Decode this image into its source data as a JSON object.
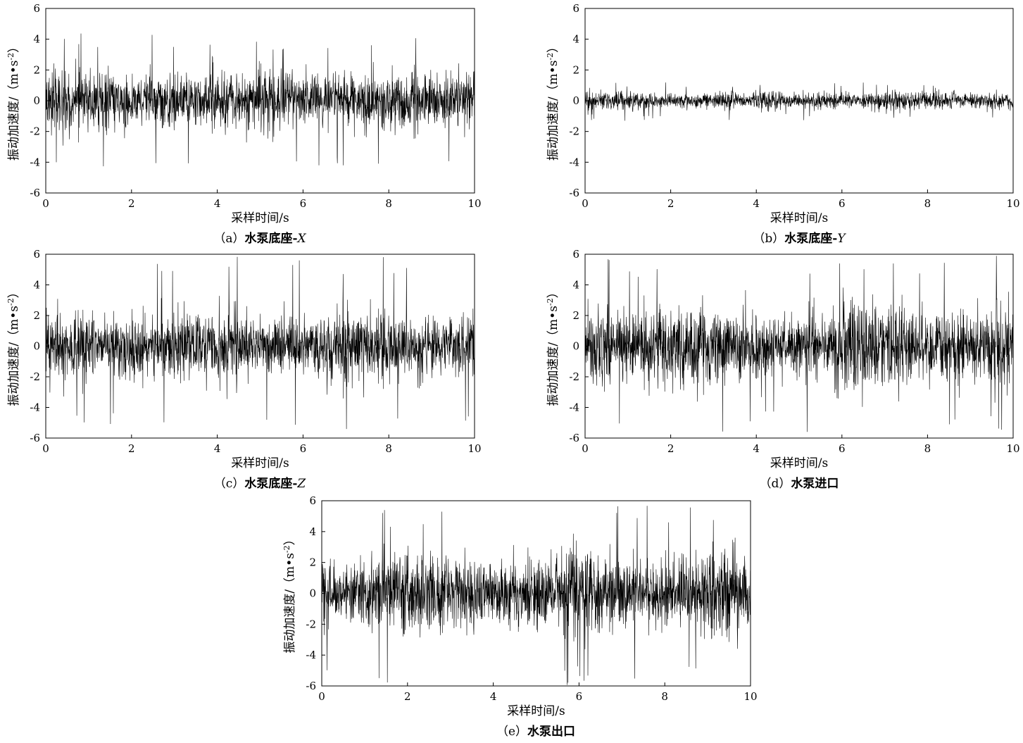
{
  "chart_data": [
    {
      "type": "line",
      "caption_prefix": "（a）",
      "caption_main": "水泵底座-",
      "caption_italic": "X",
      "xlabel": "采样时间/s",
      "ylabel_main": "振动加速度/（m•s",
      "ylabel_sup": "-2",
      "ylabel_end": "）",
      "xlim": [
        0,
        10
      ],
      "ylim": [
        -6,
        6
      ],
      "xticks": [
        "0",
        "2",
        "4",
        "6",
        "8",
        "10"
      ],
      "yticks": [
        "-6",
        "-4",
        "-2",
        "0",
        "2",
        "4",
        "6"
      ],
      "series": [
        {
          "values": {
            "t_range": [
              0,
              10
            ],
            "core_amplitude": 1.5,
            "typical_peak": 2.6,
            "max": 4.4,
            "min": -4.5
          }
        }
      ]
    },
    {
      "type": "line",
      "caption_prefix": "（b）",
      "caption_main": "水泵底座-",
      "caption_italic": "Y",
      "xlabel": "采样时间/s",
      "ylabel_main": "振动加速度/（m•s",
      "ylabel_sup": "-2",
      "ylabel_end": "）",
      "xlim": [
        0,
        10
      ],
      "ylim": [
        -6,
        6
      ],
      "xticks": [
        "0",
        "2",
        "4",
        "6",
        "8",
        "10"
      ],
      "yticks": [
        "-6",
        "-4",
        "-2",
        "0",
        "2",
        "4",
        "6"
      ],
      "series": [
        {
          "values": {
            "t_range": [
              0,
              10
            ],
            "core_amplitude": 0.45,
            "typical_peak": 0.8,
            "max": 1.2,
            "min": -1.3
          }
        }
      ]
    },
    {
      "type": "line",
      "caption_prefix": "（c）",
      "caption_main": "水泵底座-",
      "caption_italic": "Z",
      "xlabel": "采样时间/s",
      "ylabel_main": "振动加速度/（m•s",
      "ylabel_sup": "-2",
      "ylabel_end": "）",
      "xlim": [
        0,
        10
      ],
      "ylim": [
        -6,
        6
      ],
      "xticks": [
        "0",
        "2",
        "4",
        "6",
        "8",
        "10"
      ],
      "yticks": [
        "-6",
        "-4",
        "-2",
        "0",
        "2",
        "4",
        "6"
      ],
      "series": [
        {
          "values": {
            "t_range": [
              0,
              10
            ],
            "core_amplitude": 1.7,
            "typical_peak": 3.2,
            "max": 5.9,
            "min": -5.6
          }
        }
      ]
    },
    {
      "type": "line",
      "caption_prefix": "（d）",
      "caption_main": "水泵进口",
      "caption_italic": "",
      "xlabel": "采样时间/s",
      "ylabel_main": "振动加速度/（m•s",
      "ylabel_sup": "-2",
      "ylabel_end": "）",
      "xlim": [
        0,
        10
      ],
      "ylim": [
        -6,
        6
      ],
      "xticks": [
        "0",
        "2",
        "4",
        "6",
        "8",
        "10"
      ],
      "yticks": [
        "-6",
        "-4",
        "-2",
        "0",
        "2",
        "4",
        "6"
      ],
      "series": [
        {
          "values": {
            "t_range": [
              0,
              10
            ],
            "core_amplitude": 2.0,
            "typical_peak": 3.5,
            "max": 5.9,
            "min": -5.6
          }
        }
      ]
    },
    {
      "type": "line",
      "caption_prefix": "（e）",
      "caption_main": "水泵出口",
      "caption_italic": "",
      "xlabel": "采样时间/s",
      "ylabel_main": "振动加速度/（m•s",
      "ylabel_sup": "-2",
      "ylabel_end": "）",
      "xlim": [
        0,
        10
      ],
      "ylim": [
        -6,
        6
      ],
      "xticks": [
        "0",
        "2",
        "4",
        "6",
        "8",
        "10"
      ],
      "yticks": [
        "-6",
        "-4",
        "-2",
        "0",
        "2",
        "4",
        "6"
      ],
      "series": [
        {
          "values": {
            "t_range": [
              0,
              10
            ],
            "core_amplitude": 2.0,
            "typical_peak": 3.4,
            "max": 5.7,
            "min": -6.0
          }
        }
      ]
    }
  ]
}
